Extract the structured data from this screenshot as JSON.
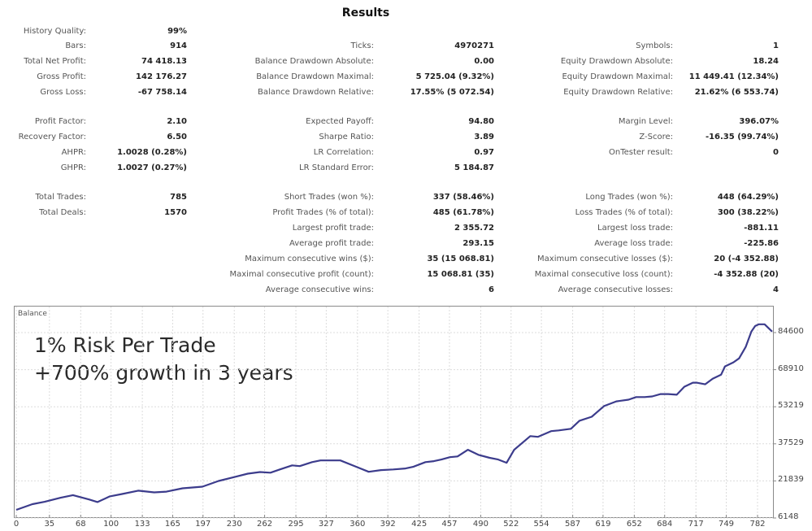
{
  "title": "Results",
  "col1": [
    {
      "label": "History Quality:",
      "value": "99%"
    },
    {
      "label": "Bars:",
      "value": "914"
    },
    {
      "label": "Total Net Profit:",
      "value": "74 418.13"
    },
    {
      "label": "Gross Profit:",
      "value": "142 176.27"
    },
    {
      "label": "Gross Loss:",
      "value": "-67 758.14"
    },
    {
      "label": "Profit Factor:",
      "value": "2.10"
    },
    {
      "label": "Recovery Factor:",
      "value": "6.50"
    },
    {
      "label": "AHPR:",
      "value": "1.0028 (0.28%)"
    },
    {
      "label": "GHPR:",
      "value": "1.0027 (0.27%)"
    },
    {
      "label": "Total Trades:",
      "value": "785"
    },
    {
      "label": "Total Deals:",
      "value": "1570"
    }
  ],
  "col2": [
    {
      "label": "Ticks:",
      "value": "4970271"
    },
    {
      "label": "Balance Drawdown Absolute:",
      "value": "0.00"
    },
    {
      "label": "Balance Drawdown Maximal:",
      "value": "5 725.04 (9.32%)"
    },
    {
      "label": "Balance Drawdown Relative:",
      "value": "17.55% (5 072.54)"
    },
    {
      "label": "Expected Payoff:",
      "value": "94.80"
    },
    {
      "label": "Sharpe Ratio:",
      "value": "3.89"
    },
    {
      "label": "LR Correlation:",
      "value": "0.97"
    },
    {
      "label": "LR Standard Error:",
      "value": "5 184.87"
    },
    {
      "label": "Short Trades (won %):",
      "value": "337 (58.46%)"
    },
    {
      "label": "Profit Trades (% of total):",
      "value": "485 (61.78%)"
    },
    {
      "label": "Largest profit trade:",
      "value": "2 355.72"
    },
    {
      "label": "Average profit trade:",
      "value": "293.15"
    },
    {
      "label": "Maximum consecutive wins ($):",
      "value": "35 (15 068.81)"
    },
    {
      "label": "Maximal consecutive profit (count):",
      "value": "15 068.81 (35)"
    },
    {
      "label": "Average consecutive wins:",
      "value": "6"
    }
  ],
  "col3": [
    {
      "label": "Symbols:",
      "value": "1"
    },
    {
      "label": "Equity Drawdown Absolute:",
      "value": "18.24"
    },
    {
      "label": "Equity Drawdown Maximal:",
      "value": "11 449.41 (12.34%)"
    },
    {
      "label": "Equity Drawdown Relative:",
      "value": "21.62% (6 553.74)"
    },
    {
      "label": "Margin Level:",
      "value": "396.07%"
    },
    {
      "label": "Z-Score:",
      "value": "-16.35 (99.74%)"
    },
    {
      "label": "OnTester result:",
      "value": "0"
    },
    {
      "label": "Long Trades (won %):",
      "value": "448 (64.29%)"
    },
    {
      "label": "Loss Trades (% of total):",
      "value": "300 (38.22%)"
    },
    {
      "label": "Largest loss trade:",
      "value": "-881.11"
    },
    {
      "label": "Average loss trade:",
      "value": "-225.86"
    },
    {
      "label": "Maximum consecutive losses ($):",
      "value": "20 (-4 352.88)"
    },
    {
      "label": "Maximal consecutive loss (count):",
      "value": "-4 352.88 (20)"
    },
    {
      "label": "Average consecutive losses:",
      "value": "4"
    }
  ],
  "chart": {
    "label": "Balance",
    "annotation_line1": "1% Risk Per Trade",
    "annotation_line2": "+700% growth in 3 years",
    "line_color": "#3c3c8c"
  },
  "chart_data": {
    "type": "line",
    "title": "Balance",
    "xlabel": "",
    "ylabel": "",
    "x_ticks": [
      "0",
      "35",
      "68",
      "100",
      "133",
      "165",
      "197",
      "230",
      "262",
      "295",
      "327",
      "360",
      "392",
      "425",
      "457",
      "490",
      "522",
      "554",
      "587",
      "619",
      "652",
      "684",
      "717",
      "749",
      "782"
    ],
    "y_ticks": [
      "84600",
      "68910",
      "53219",
      "37529",
      "21839",
      "6148"
    ],
    "ylim": [
      6148,
      84600
    ],
    "xlim": [
      0,
      800
    ],
    "grid": true,
    "series": [
      {
        "name": "Balance",
        "x": [
          0,
          17,
          30,
          47,
          60,
          77,
          86,
          99,
          112,
          129,
          146,
          159,
          176,
          197,
          214,
          232,
          245,
          258,
          269,
          279,
          292,
          300,
          313,
          322,
          343,
          360,
          373,
          386,
          399,
          412,
          420,
          433,
          442,
          450,
          459,
          467,
          478,
          489,
          501,
          510,
          519,
          527,
          544,
          552,
          566,
          574,
          587,
          596,
          609,
          622,
          635,
          648,
          656,
          665,
          673,
          682,
          690,
          699,
          707,
          716,
          720,
          729,
          737,
          746,
          750,
          759,
          765,
          772,
          778,
          782,
          786,
          792,
          800
        ],
        "y": [
          9600,
          12000,
          13000,
          14700,
          15800,
          14000,
          12900,
          15300,
          16300,
          17700,
          17000,
          17300,
          18700,
          19400,
          21800,
          23600,
          24900,
          25600,
          25300,
          26700,
          28400,
          28100,
          29800,
          30500,
          30500,
          27800,
          25700,
          26400,
          26700,
          27100,
          27800,
          29800,
          30200,
          30900,
          31900,
          32200,
          35000,
          32900,
          31600,
          30900,
          29500,
          35000,
          40800,
          40500,
          42900,
          43200,
          43900,
          47300,
          49000,
          53500,
          55500,
          56200,
          57300,
          57300,
          57600,
          58600,
          58600,
          58300,
          61700,
          63400,
          63400,
          62700,
          65100,
          66800,
          70300,
          72000,
          73700,
          78500,
          85000,
          87400,
          88100,
          88100,
          85000
        ]
      }
    ]
  }
}
